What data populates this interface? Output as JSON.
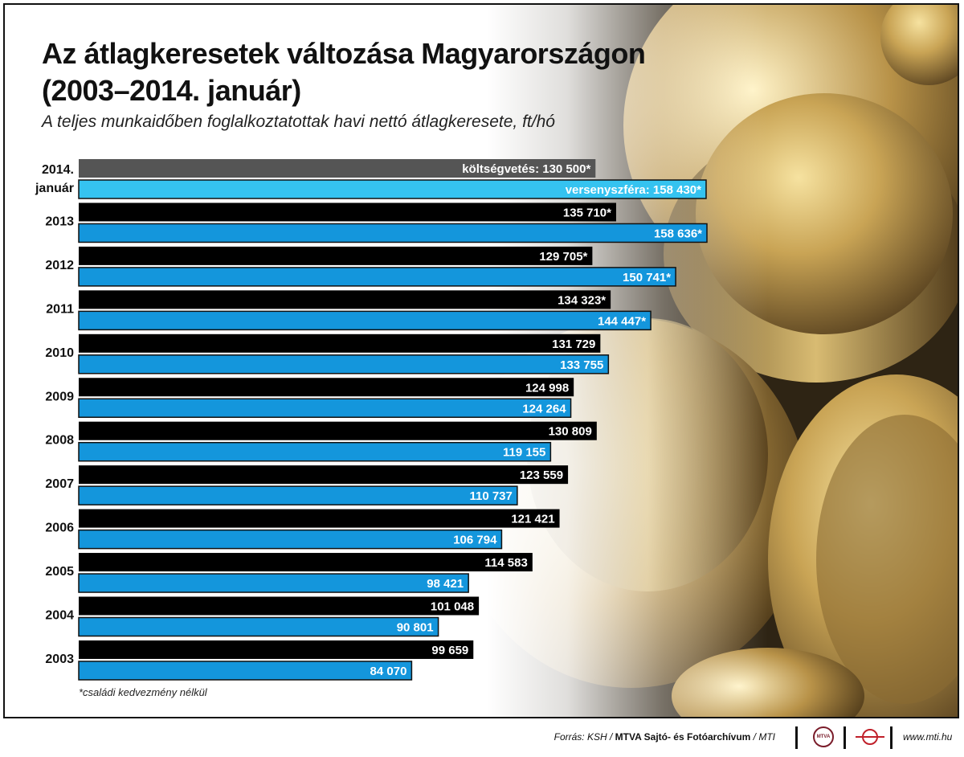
{
  "title_line1": "Az átlagkeresetek változása Magyarországon",
  "title_line2": "(2003–2014. január)",
  "subtitle": "A teljes munkaidőben foglalkoztatottak havi nettó átlagkeresete, ft/hó",
  "footnote": "*családi kedvezmény nélkül",
  "source": {
    "prefix": "Forrás: KSH / ",
    "agency": "MTVA Sajtó- és Fotóarchívum",
    "suffix": " / MTI",
    "logo_text": "MTVA",
    "site": "www.mti.hu"
  },
  "colors": {
    "black_bar": "#000000",
    "gray_bar": "#555555",
    "blue_bar": "#1496dc",
    "light_blue_bar": "#35c3f0"
  },
  "chart_data": {
    "type": "bar",
    "orientation": "horizontal",
    "categories": [
      "2014. január",
      "2013",
      "2012",
      "2011",
      "2010",
      "2009",
      "2008",
      "2007",
      "2006",
      "2005",
      "2004",
      "2003"
    ],
    "category_labels": [
      [
        "2014.",
        "január"
      ],
      [
        "2013"
      ],
      [
        "2012"
      ],
      [
        "2011"
      ],
      [
        "2010"
      ],
      [
        "2009"
      ],
      [
        "2008"
      ],
      [
        "2007"
      ],
      [
        "2006"
      ],
      [
        "2005"
      ],
      [
        "2004"
      ],
      [
        "2003"
      ]
    ],
    "series": [
      {
        "values": [
          130500,
          135710,
          129705,
          134323,
          131729,
          124998,
          130809,
          123559,
          121421,
          114583,
          101048,
          99659
        ],
        "labels": [
          "költségvetés: 130 500*",
          "135 710*",
          "129 705*",
          "134 323*",
          "131 729",
          "124 998",
          "130 809",
          "123 559",
          "121 421",
          "114 583",
          "101 048",
          "99 659"
        ]
      },
      {
        "values": [
          158430,
          158636,
          150741,
          144447,
          133755,
          124264,
          119155,
          110737,
          106794,
          98421,
          90801,
          84070
        ],
        "labels": [
          "versenyszféra: 158 430*",
          "158 636*",
          "150 741*",
          "144 447*",
          "133 755",
          "124 264",
          "119 155",
          "110 737",
          "106 794",
          "98 421",
          "90 801",
          "84 070"
        ]
      }
    ],
    "annotations": [
      "*családi kedvezmény nélkül"
    ]
  }
}
